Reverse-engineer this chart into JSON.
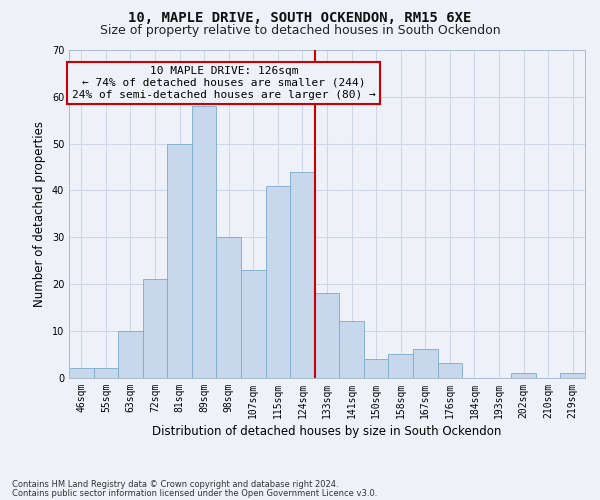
{
  "title": "10, MAPLE DRIVE, SOUTH OCKENDON, RM15 6XE",
  "subtitle": "Size of property relative to detached houses in South Ockendon",
  "xlabel": "Distribution of detached houses by size in South Ockendon",
  "ylabel": "Number of detached properties",
  "categories": [
    "46sqm",
    "55sqm",
    "63sqm",
    "72sqm",
    "81sqm",
    "89sqm",
    "98sqm",
    "107sqm",
    "115sqm",
    "124sqm",
    "133sqm",
    "141sqm",
    "150sqm",
    "158sqm",
    "167sqm",
    "176sqm",
    "184sqm",
    "193sqm",
    "202sqm",
    "210sqm",
    "219sqm"
  ],
  "values": [
    2,
    2,
    10,
    21,
    50,
    58,
    30,
    23,
    41,
    44,
    18,
    12,
    4,
    5,
    6,
    3,
    0,
    0,
    1,
    0,
    1
  ],
  "bar_color": "#c8d8ec",
  "bar_edge_color": "#7aaac8",
  "vline_x_idx": 9.5,
  "vline_color": "#cc0000",
  "annotation_text": "10 MAPLE DRIVE: 126sqm\n← 74% of detached houses are smaller (244)\n24% of semi-detached houses are larger (80) →",
  "annotation_box_color": "#cc0000",
  "ylim": [
    0,
    70
  ],
  "yticks": [
    0,
    10,
    20,
    30,
    40,
    50,
    60,
    70
  ],
  "grid_color": "#ccd8e8",
  "background_color": "#eef2f8",
  "footer_line1": "Contains HM Land Registry data © Crown copyright and database right 2024.",
  "footer_line2": "Contains public sector information licensed under the Open Government Licence v3.0.",
  "title_fontsize": 10,
  "subtitle_fontsize": 9,
  "xlabel_fontsize": 8.5,
  "ylabel_fontsize": 8.5,
  "tick_fontsize": 7,
  "annotation_fontsize": 8,
  "footer_fontsize": 6
}
